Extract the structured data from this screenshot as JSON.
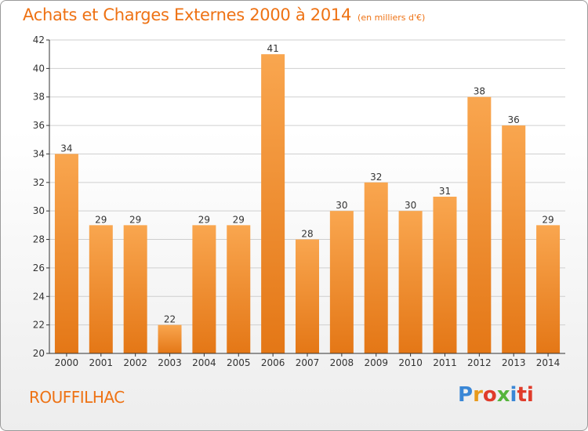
{
  "header": {
    "title": "Achats et Charges Externes 2000 à 2014",
    "subtitle": "(en milliers d'€)"
  },
  "footer": {
    "city": "ROUFFILHAC",
    "logo_letters": [
      "P",
      "r",
      "o",
      "x",
      "i",
      "ti"
    ]
  },
  "chart_data": {
    "type": "bar",
    "title": "Achats et Charges Externes 2000 à 2014",
    "subtitle": "(en milliers d'€)",
    "categories": [
      "2000",
      "2001",
      "2002",
      "2003",
      "2004",
      "2005",
      "2006",
      "2007",
      "2008",
      "2009",
      "2010",
      "2011",
      "2012",
      "2013",
      "2014"
    ],
    "values": [
      34,
      29,
      29,
      22,
      29,
      29,
      41,
      28,
      30,
      32,
      30,
      31,
      38,
      36,
      29
    ],
    "ylim": [
      20,
      42
    ],
    "yticks": [
      20,
      22,
      24,
      26,
      28,
      30,
      32,
      34,
      36,
      38,
      40,
      42
    ],
    "grid": true,
    "colors": {
      "bar_light": "#f9a64f",
      "bar_dark": "#e47716",
      "grid": "#cfcfcf",
      "axis": "#333333",
      "accent": "#ee7214"
    }
  }
}
